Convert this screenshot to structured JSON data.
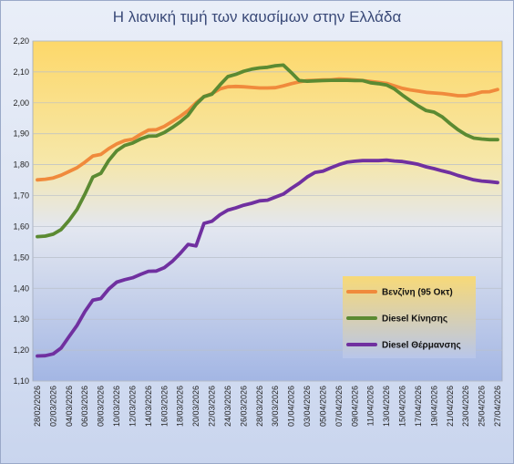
{
  "chart_data": {
    "type": "line",
    "title": "Η λιανική τιμή των καυσίμων στην Ελλάδα",
    "xlabel": "",
    "ylabel": "",
    "ylim": [
      1.1,
      2.2
    ],
    "yticks": [
      "1,10",
      "1,20",
      "1,30",
      "1,40",
      "1,50",
      "1,60",
      "1,70",
      "1,80",
      "1,90",
      "2,00",
      "2,10",
      "2,20"
    ],
    "x": [
      "28/02/2026",
      "01/03/2026",
      "02/03/2026",
      "03/03/2026",
      "04/03/2026",
      "05/03/2026",
      "06/03/2026",
      "07/03/2026",
      "08/03/2026",
      "09/03/2026",
      "10/03/2026",
      "11/03/2026",
      "12/03/2026",
      "13/03/2026",
      "14/03/2026",
      "15/03/2026",
      "16/03/2026",
      "17/03/2026",
      "18/03/2026",
      "19/03/2026",
      "20/03/2026",
      "21/03/2026",
      "22/03/2026",
      "23/03/2026",
      "24/03/2026",
      "25/03/2026",
      "26/03/2026",
      "27/03/2026",
      "28/03/2026",
      "29/03/2026",
      "30/03/2026",
      "31/03/2026",
      "01/04/2026",
      "02/04/2026",
      "03/04/2026",
      "04/04/2026",
      "05/04/2026",
      "06/04/2026",
      "07/04/2026",
      "08/04/2026",
      "09/04/2026",
      "10/04/2026",
      "11/04/2026",
      "12/04/2026",
      "13/04/2026",
      "14/04/2026",
      "15/04/2026",
      "16/04/2026",
      "17/04/2026",
      "18/04/2026",
      "19/04/2026",
      "20/04/2026",
      "21/04/2026",
      "22/04/2026",
      "23/04/2026",
      "24/04/2026",
      "25/04/2026",
      "26/04/2026",
      "27/04/2026"
    ],
    "xtick_labels": [
      "28/02/2026",
      "02/03/2026",
      "04/03/2026",
      "06/03/2026",
      "08/03/2026",
      "10/03/2026",
      "12/03/2026",
      "14/03/2026",
      "16/03/2026",
      "18/03/2026",
      "20/03/2026",
      "22/03/2026",
      "24/03/2026",
      "26/03/2026",
      "28/03/2026",
      "30/03/2026",
      "01/04/2026",
      "03/04/2026",
      "05/04/2026",
      "07/04/2026",
      "09/04/2026",
      "11/04/2026",
      "13/04/2026",
      "15/04/2026",
      "17/04/2026",
      "19/04/2026",
      "21/04/2026",
      "23/04/2026",
      "25/04/2026",
      "27/04/2026"
    ],
    "series": [
      {
        "name": "Βενζίνη (95 Οκτ)",
        "color": "#f08a3c",
        "values": [
          1.751,
          1.753,
          1.757,
          1.766,
          1.778,
          1.79,
          1.808,
          1.828,
          1.833,
          1.852,
          1.867,
          1.878,
          1.882,
          1.898,
          1.912,
          1.913,
          1.924,
          1.94,
          1.956,
          1.975,
          2.0,
          2.02,
          2.03,
          2.045,
          2.052,
          2.053,
          2.052,
          2.05,
          2.048,
          2.048,
          2.049,
          2.055,
          2.062,
          2.068,
          2.072,
          2.073,
          2.074,
          2.074,
          2.077,
          2.076,
          2.074,
          2.072,
          2.069,
          2.066,
          2.063,
          2.055,
          2.047,
          2.042,
          2.038,
          2.034,
          2.032,
          2.03,
          2.027,
          2.023,
          2.023,
          2.028,
          2.035,
          2.036,
          2.043
        ]
      },
      {
        "name": "Diesel Κίνησης",
        "color": "#5b8a32",
        "values": [
          1.567,
          1.569,
          1.575,
          1.59,
          1.62,
          1.655,
          1.705,
          1.76,
          1.772,
          1.814,
          1.845,
          1.862,
          1.87,
          1.883,
          1.892,
          1.893,
          1.904,
          1.92,
          1.938,
          1.96,
          1.995,
          2.02,
          2.028,
          2.058,
          2.085,
          2.092,
          2.102,
          2.109,
          2.113,
          2.115,
          2.12,
          2.122,
          2.098,
          2.072,
          2.07,
          2.071,
          2.072,
          2.073,
          2.073,
          2.073,
          2.072,
          2.072,
          2.065,
          2.062,
          2.058,
          2.045,
          2.025,
          2.007,
          1.99,
          1.975,
          1.97,
          1.955,
          1.933,
          1.913,
          1.897,
          1.886,
          1.883,
          1.881,
          1.881
        ]
      },
      {
        "name": "Diesel Θέρμανσης",
        "color": "#7030a0",
        "values": [
          1.181,
          1.182,
          1.188,
          1.207,
          1.244,
          1.28,
          1.325,
          1.362,
          1.367,
          1.398,
          1.42,
          1.428,
          1.434,
          1.445,
          1.455,
          1.456,
          1.467,
          1.487,
          1.513,
          1.542,
          1.537,
          1.61,
          1.617,
          1.638,
          1.653,
          1.66,
          1.669,
          1.675,
          1.683,
          1.685,
          1.695,
          1.705,
          1.723,
          1.74,
          1.76,
          1.775,
          1.779,
          1.79,
          1.8,
          1.808,
          1.811,
          1.813,
          1.813,
          1.813,
          1.815,
          1.812,
          1.81,
          1.806,
          1.801,
          1.793,
          1.787,
          1.78,
          1.774,
          1.765,
          1.758,
          1.751,
          1.747,
          1.745,
          1.742
        ]
      }
    ],
    "grid": true,
    "legend_position": "right"
  }
}
